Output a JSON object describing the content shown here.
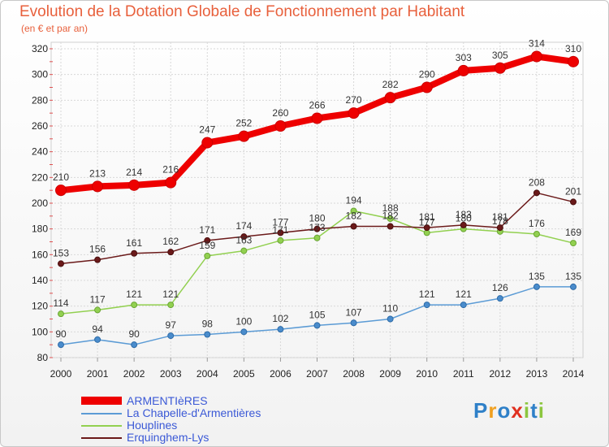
{
  "chart_data": {
    "type": "line",
    "title": "Evolution de la Dotation Globale de Fonctionnement par Habitant",
    "subtitle": "(en € et par an)",
    "categories": [
      "2000",
      "2001",
      "2002",
      "2003",
      "2004",
      "2005",
      "2006",
      "2007",
      "2008",
      "2009",
      "2010",
      "2011",
      "2012",
      "2013",
      "2014"
    ],
    "ylim": [
      80,
      320
    ],
    "yticks": [
      80,
      100,
      120,
      140,
      160,
      180,
      200,
      220,
      240,
      260,
      280,
      300,
      320
    ],
    "grid": true,
    "legend_position": "bottom-left",
    "series": [
      {
        "name": "ARMENTIèRES",
        "color": "#ee0000",
        "values": [
          210,
          213,
          214,
          216,
          247,
          252,
          260,
          266,
          270,
          282,
          290,
          303,
          305,
          314,
          310
        ]
      },
      {
        "name": "La Chapelle-d'Armentières",
        "color": "#5b9bd5",
        "values": [
          90,
          94,
          90,
          97,
          98,
          100,
          102,
          105,
          107,
          110,
          121,
          121,
          126,
          135,
          135
        ]
      },
      {
        "name": "Houplines",
        "color": "#92d050",
        "values": [
          114,
          117,
          121,
          121,
          159,
          163,
          171,
          173,
          194,
          188,
          177,
          180,
          178,
          176,
          169
        ]
      },
      {
        "name": "Erquinghem-Lys",
        "color": "#6b1a1a",
        "values": [
          153,
          156,
          161,
          162,
          171,
          174,
          177,
          180,
          182,
          182,
          181,
          183,
          181,
          208,
          201
        ]
      }
    ],
    "value_labels": [
      [
        "210",
        "213",
        "214",
        "216",
        "247",
        "252",
        "260",
        "266",
        "270",
        "282",
        "290",
        "303",
        "305",
        "314",
        "310"
      ],
      [
        "90",
        "94",
        "90",
        "97",
        "98",
        "100",
        "102",
        "105",
        "107",
        "110",
        "121",
        "121",
        "126",
        "135",
        "135"
      ],
      [
        "114",
        "117",
        "121",
        "121",
        "159",
        "163",
        "171",
        "173",
        "194",
        "188",
        "177",
        "180",
        "178",
        "176",
        "169"
      ],
      [
        "153",
        "156",
        "161",
        "162",
        "171",
        "174",
        "177",
        "180",
        "182",
        "182",
        "181",
        "183",
        "181",
        "208",
        "201"
      ]
    ]
  },
  "logo": {
    "text": "Proxiti",
    "letters": [
      "P",
      "r",
      "o",
      "x",
      "i",
      "t",
      "i"
    ]
  }
}
